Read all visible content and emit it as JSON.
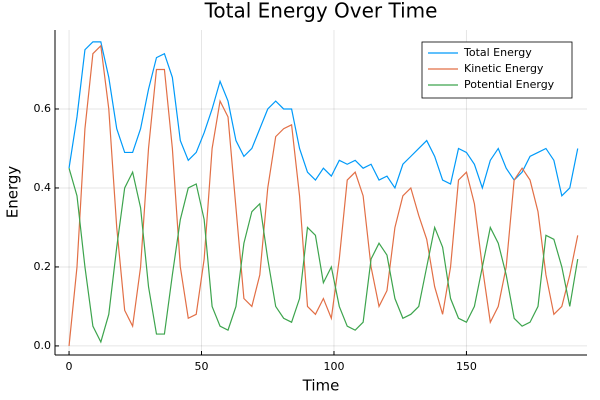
{
  "chart_data": {
    "type": "line",
    "title": "Total Energy Over Time",
    "xlabel": "Time",
    "ylabel": "Energy",
    "x": [
      0,
      3,
      6,
      9,
      12,
      15,
      18,
      21,
      24,
      27,
      30,
      33,
      36,
      39,
      42,
      45,
      48,
      51,
      54,
      57,
      60,
      63,
      66,
      69,
      72,
      75,
      78,
      81,
      84,
      87,
      90,
      93,
      96,
      99,
      102,
      105,
      108,
      111,
      114,
      117,
      120,
      123,
      126,
      129,
      132,
      135,
      138,
      141,
      144,
      147,
      150,
      153,
      156,
      159,
      162,
      165,
      168,
      171,
      174,
      177,
      180,
      183,
      186,
      189,
      192
    ],
    "series": [
      {
        "name": "Total Energy",
        "color": "#009af9",
        "values": [
          0.45,
          0.58,
          0.75,
          0.77,
          0.77,
          0.68,
          0.55,
          0.49,
          0.49,
          0.55,
          0.65,
          0.73,
          0.74,
          0.68,
          0.52,
          0.47,
          0.49,
          0.54,
          0.6,
          0.67,
          0.62,
          0.52,
          0.48,
          0.5,
          0.55,
          0.6,
          0.62,
          0.6,
          0.6,
          0.5,
          0.44,
          0.42,
          0.45,
          0.43,
          0.47,
          0.46,
          0.47,
          0.45,
          0.46,
          0.42,
          0.43,
          0.4,
          0.46,
          0.48,
          0.5,
          0.52,
          0.48,
          0.42,
          0.41,
          0.5,
          0.49,
          0.46,
          0.4,
          0.47,
          0.5,
          0.45,
          0.42,
          0.44,
          0.48,
          0.49,
          0.5,
          0.47,
          0.38,
          0.4,
          0.5
        ]
      },
      {
        "name": "Kinetic Energy",
        "color": "#e26f46",
        "values": [
          0,
          0.2,
          0.55,
          0.74,
          0.76,
          0.6,
          0.3,
          0.09,
          0.05,
          0.2,
          0.5,
          0.7,
          0.7,
          0.5,
          0.2,
          0.07,
          0.08,
          0.22,
          0.5,
          0.62,
          0.58,
          0.35,
          0.12,
          0.1,
          0.18,
          0.4,
          0.53,
          0.55,
          0.56,
          0.38,
          0.1,
          0.08,
          0.12,
          0.07,
          0.22,
          0.42,
          0.44,
          0.38,
          0.2,
          0.1,
          0.14,
          0.3,
          0.38,
          0.4,
          0.33,
          0.27,
          0.15,
          0.08,
          0.2,
          0.42,
          0.44,
          0.36,
          0.2,
          0.06,
          0.1,
          0.2,
          0.42,
          0.45,
          0.42,
          0.34,
          0.18,
          0.08,
          0.1,
          0.18,
          0.28
        ]
      },
      {
        "name": "Potential Energy",
        "color": "#3da44d",
        "values": [
          0.45,
          0.38,
          0.2,
          0.05,
          0.01,
          0.08,
          0.25,
          0.4,
          0.44,
          0.35,
          0.15,
          0.03,
          0.03,
          0.18,
          0.32,
          0.4,
          0.41,
          0.32,
          0.1,
          0.05,
          0.04,
          0.1,
          0.26,
          0.34,
          0.36,
          0.22,
          0.1,
          0.07,
          0.06,
          0.12,
          0.3,
          0.28,
          0.16,
          0.2,
          0.1,
          0.05,
          0.04,
          0.06,
          0.22,
          0.26,
          0.23,
          0.12,
          0.07,
          0.08,
          0.1,
          0.2,
          0.3,
          0.25,
          0.12,
          0.07,
          0.06,
          0.1,
          0.2,
          0.3,
          0.26,
          0.18,
          0.07,
          0.05,
          0.06,
          0.1,
          0.28,
          0.27,
          0.2,
          0.1,
          0.22
        ]
      }
    ],
    "xlim": [
      -5.3,
      195.5
    ],
    "xticks": [
      0,
      50,
      100,
      150
    ],
    "ylim": [
      -0.023,
      0.8
    ],
    "yticks": [
      {
        "value": 0,
        "label": "0.0"
      },
      0.2,
      0.4,
      0.6
    ],
    "grid": true,
    "legend": "top-right"
  }
}
